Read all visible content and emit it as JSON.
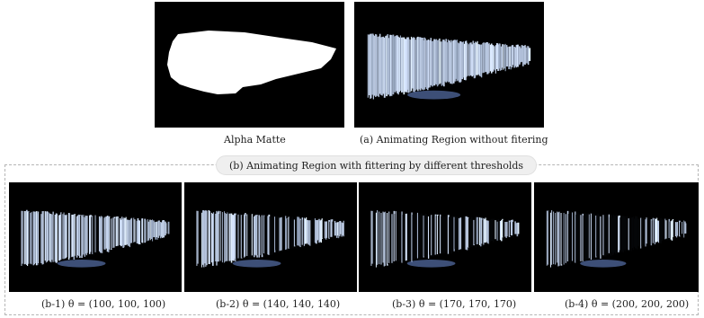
{
  "figure": {
    "top_left_caption": "Alpha Matte",
    "top_right_caption": "(a) Animating Region without fitering",
    "group_label": "(b) Animating Region with  fittering by different thresholds",
    "thresholds": [
      {
        "caption": "(b-1) θ = (100, 100, 100)",
        "level": 100
      },
      {
        "caption": "(b-2) θ = (140, 140, 140)",
        "level": 140
      },
      {
        "caption": "(b-3) θ = (170, 170, 170)",
        "level": 170
      },
      {
        "caption": "(b-4) θ = (200, 200, 200)",
        "level": 200
      }
    ]
  }
}
